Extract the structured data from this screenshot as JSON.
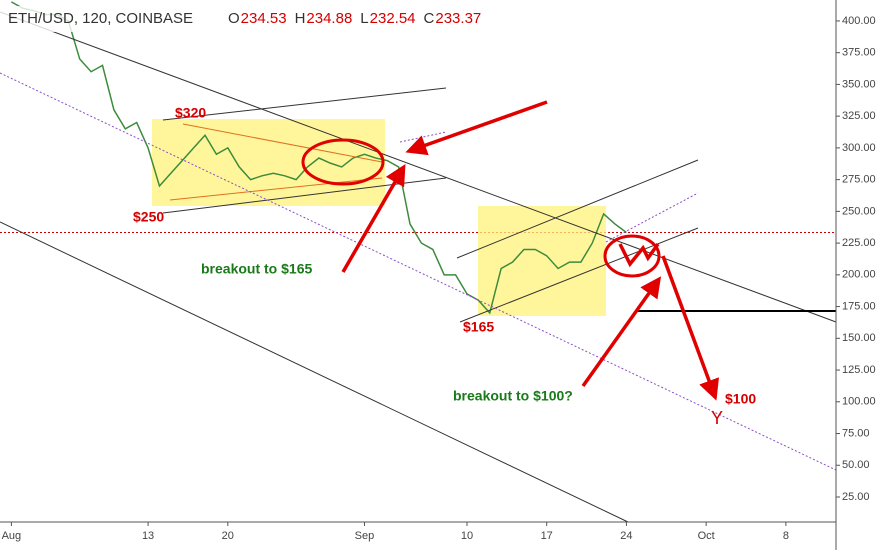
{
  "chart_data": {
    "type": "line",
    "title": "ETH/USD, 120, COINBASE",
    "ohlc": [
      {
        "label": "O",
        "value": 234.53
      },
      {
        "label": "H",
        "value": 234.88
      },
      {
        "label": "L",
        "value": 232.54
      },
      {
        "label": "C",
        "value": 233.37
      }
    ],
    "x": [
      0,
      1,
      2,
      3,
      4,
      5,
      6,
      7,
      8,
      9,
      10,
      11,
      12,
      13,
      14,
      15,
      16,
      17,
      18,
      19,
      20,
      21,
      22,
      23,
      24,
      25,
      26,
      27,
      28,
      29,
      30,
      31,
      32,
      33,
      34,
      35,
      36,
      37,
      38,
      39,
      40,
      41,
      42,
      43,
      44,
      45,
      46,
      47,
      48,
      49,
      50,
      51,
      52,
      53,
      54
    ],
    "series": [
      {
        "name": "ETH/USD",
        "color": "#3c8c3c",
        "values": [
          415,
          410,
          408,
          405,
          405,
          400,
          370,
          360,
          365,
          330,
          315,
          320,
          300,
          270,
          280,
          290,
          300,
          310,
          295,
          300,
          285,
          275,
          278,
          280,
          278,
          275,
          285,
          292,
          288,
          285,
          292,
          295,
          292,
          290,
          285,
          240,
          225,
          220,
          200,
          200,
          185,
          180,
          170,
          205,
          210,
          220,
          220,
          215,
          205,
          210,
          210,
          225,
          248,
          240,
          233.37
        ]
      }
    ],
    "xlim": [
      -1,
      72.4
    ],
    "xticks": [
      {
        "value": 0,
        "label": "Aug"
      },
      {
        "value": 12,
        "label": "13"
      },
      {
        "value": 19,
        "label": "20"
      },
      {
        "value": 31,
        "label": "Sep"
      },
      {
        "value": 40,
        "label": "10"
      },
      {
        "value": 47,
        "label": "17"
      },
      {
        "value": 54,
        "label": "24"
      },
      {
        "value": 61,
        "label": "Oct"
      },
      {
        "value": 68,
        "label": "8"
      }
    ],
    "ylim": [
      5.3,
      416.5
    ],
    "yticks": [
      {
        "value": 25,
        "label": "25.00"
      },
      {
        "value": 50,
        "label": "50.00"
      },
      {
        "value": 75,
        "label": "75.00"
      },
      {
        "value": 100,
        "label": "100.00"
      },
      {
        "value": 125,
        "label": "125.00"
      },
      {
        "value": 150,
        "label": "150.00"
      },
      {
        "value": 175,
        "label": "175.00"
      },
      {
        "value": 200,
        "label": "200.00"
      },
      {
        "value": 225,
        "label": "225.00"
      },
      {
        "value": 250,
        "label": "250.00"
      },
      {
        "value": 275,
        "label": "275.00"
      },
      {
        "value": 300,
        "label": "300.00"
      },
      {
        "value": 325,
        "label": "325.00"
      },
      {
        "value": 350,
        "label": "350.00"
      },
      {
        "value": 375,
        "label": "375.00"
      },
      {
        "value": 400,
        "label": "400.00"
      }
    ],
    "annotations": [
      "$320",
      "$250",
      "$165",
      "$100",
      "Y",
      "breakout to $165",
      "breakout to $100?"
    ]
  }
}
